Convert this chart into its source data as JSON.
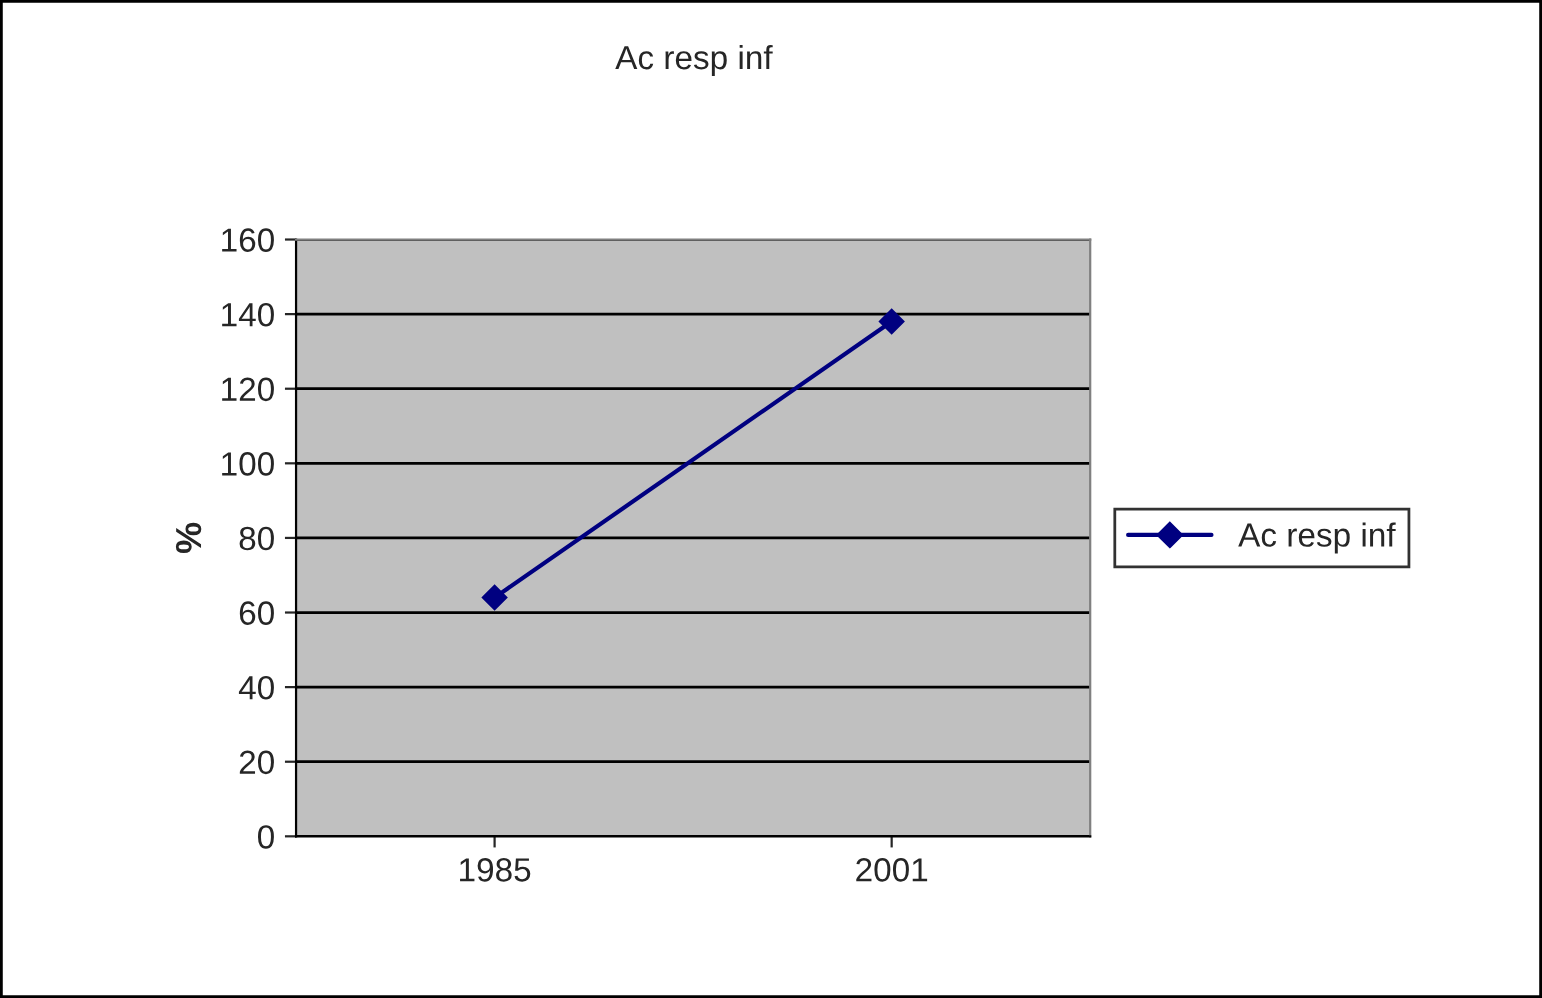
{
  "chart_data": {
    "type": "line",
    "title": "Ac resp inf",
    "ylabel": "%",
    "categories": [
      "1985",
      "2001"
    ],
    "series": [
      {
        "name": "Ac resp inf",
        "color": "#000080",
        "values": [
          64,
          138
        ]
      }
    ],
    "ylim": [
      0,
      160
    ],
    "yticks": [
      0,
      20,
      40,
      60,
      80,
      100,
      120,
      140,
      160
    ],
    "grid": "y",
    "legend": "right",
    "marker": "diamond",
    "line_style": "solid"
  }
}
